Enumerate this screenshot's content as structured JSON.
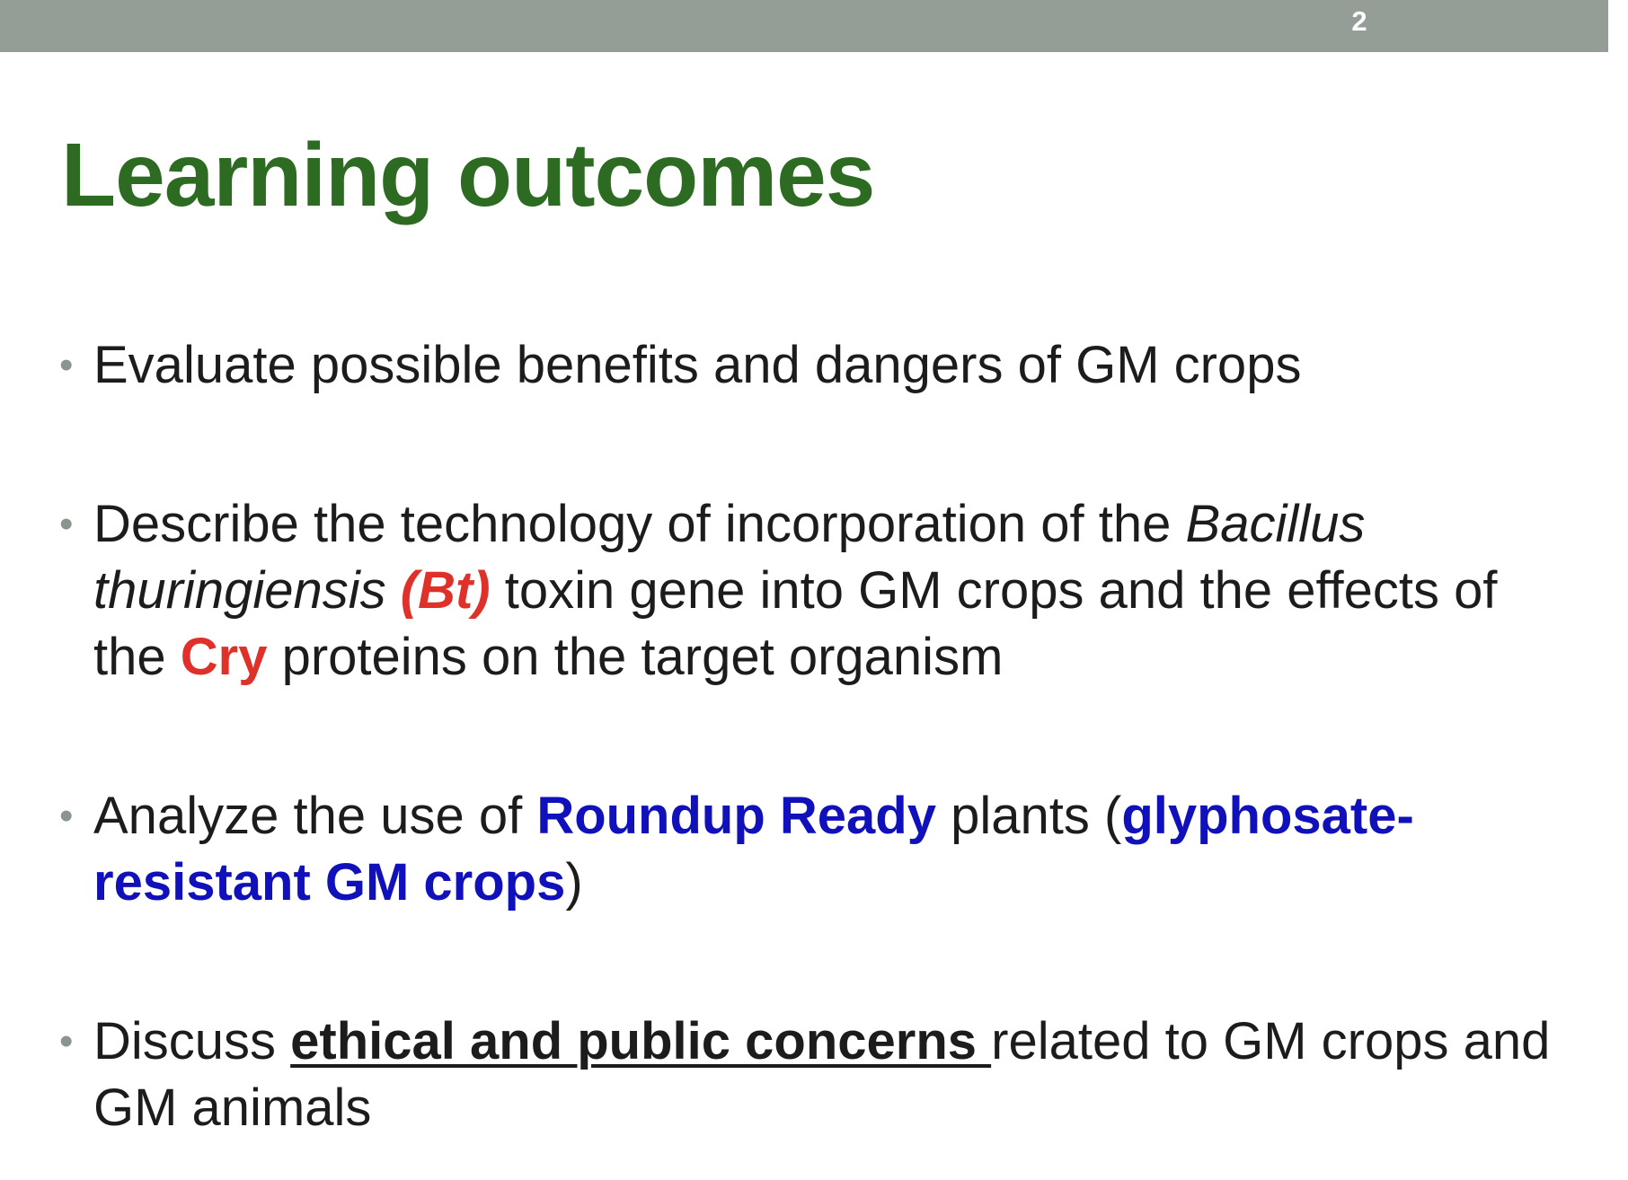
{
  "slide": {
    "number": "2",
    "title": "Learning outcomes"
  },
  "bullets": [
    {
      "text": "Evaluate possible benefits and dangers of GM crops"
    },
    {
      "part1": "Describe the technology of incorporation of the ",
      "italic1": "Bacillus thuringiensis",
      "space1": " ",
      "highlight1": "(Bt)",
      "part2": " toxin gene into GM crops and the effects of the ",
      "highlight2": "Cry",
      "part3": " proteins on the target organism"
    },
    {
      "part1": "Analyze the use of ",
      "highlight1": "Roundup Ready",
      "part2": " plants (",
      "highlight2": "glyphosate-resistant GM crops",
      "part3": ")"
    },
    {
      "part1": "Discuss ",
      "highlight1": "ethical and public concerns ",
      "part2": "related to GM crops and GM animals"
    }
  ],
  "colors": {
    "title": "#2e6b22",
    "top_bar": "#949e96",
    "red_highlight": "#e0302a",
    "blue_highlight": "#1111bb"
  }
}
